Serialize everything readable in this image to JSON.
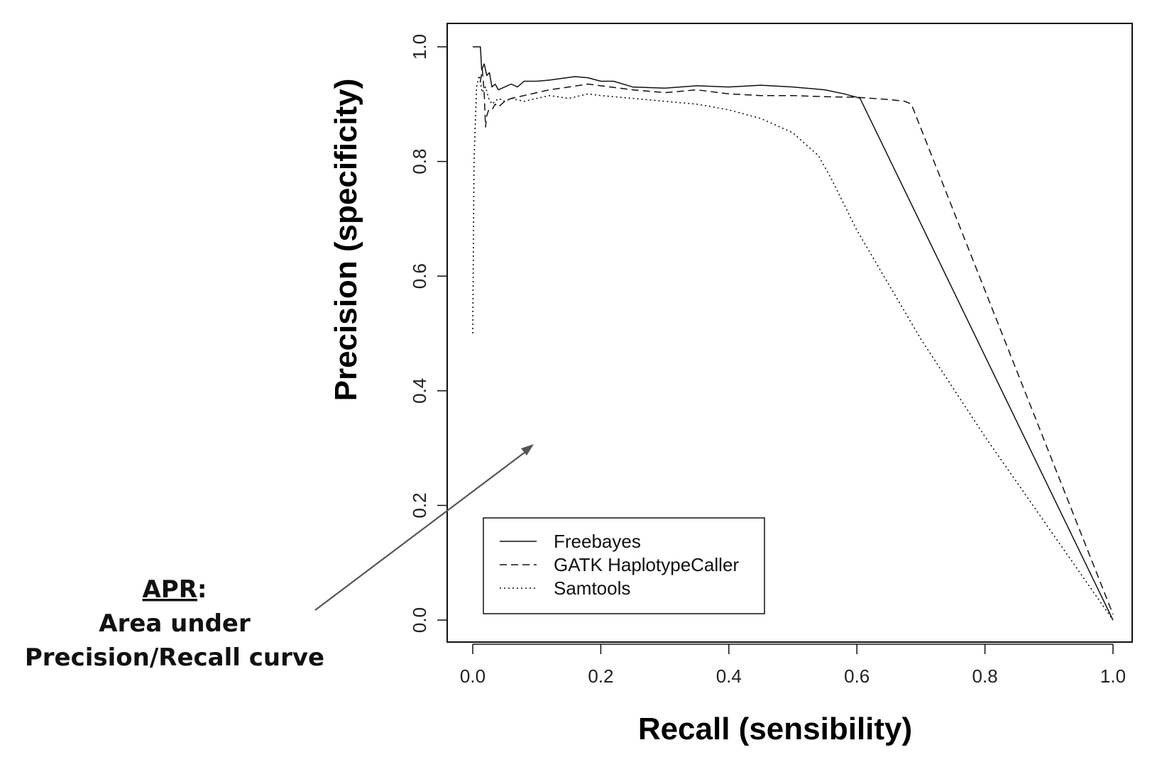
{
  "chart_data": {
    "type": "line",
    "xlabel": "Recall (sensibility)",
    "ylabel": "Precision (specificity)",
    "xlim": [
      0.0,
      1.0
    ],
    "ylim": [
      0.0,
      1.0
    ],
    "xticks": [
      "0.0",
      "0.2",
      "0.4",
      "0.6",
      "0.8",
      "1.0"
    ],
    "yticks": [
      "0.0",
      "0.2",
      "0.4",
      "0.6",
      "0.8",
      "1.0"
    ],
    "grid": false,
    "legend_position": "bottom-left",
    "series": [
      {
        "name": "Freebayes",
        "style": "solid",
        "x": [
          0.0,
          0.006,
          0.012,
          0.014,
          0.018,
          0.022,
          0.026,
          0.03,
          0.035,
          0.04,
          0.05,
          0.06,
          0.07,
          0.08,
          0.1,
          0.12,
          0.14,
          0.16,
          0.18,
          0.2,
          0.22,
          0.25,
          0.3,
          0.35,
          0.4,
          0.45,
          0.5,
          0.55,
          0.58,
          0.6,
          0.605,
          1.0
        ],
        "y": [
          1.0,
          1.0,
          1.0,
          0.96,
          0.97,
          0.95,
          0.955,
          0.93,
          0.935,
          0.925,
          0.93,
          0.935,
          0.93,
          0.94,
          0.94,
          0.942,
          0.945,
          0.948,
          0.946,
          0.94,
          0.94,
          0.93,
          0.928,
          0.932,
          0.93,
          0.933,
          0.93,
          0.925,
          0.918,
          0.912,
          0.91,
          0.0
        ]
      },
      {
        "name": "GATK HaplotypeCaller",
        "style": "dashed",
        "x": [
          0.012,
          0.015,
          0.018,
          0.02,
          0.022,
          0.025,
          0.03,
          0.035,
          0.04,
          0.05,
          0.06,
          0.08,
          0.1,
          0.12,
          0.15,
          0.18,
          0.2,
          0.25,
          0.3,
          0.35,
          0.4,
          0.45,
          0.5,
          0.55,
          0.6,
          0.65,
          0.675,
          0.685,
          1.0
        ],
        "y": [
          0.94,
          0.96,
          0.92,
          0.86,
          0.88,
          0.89,
          0.89,
          0.9,
          0.895,
          0.905,
          0.91,
          0.915,
          0.92,
          0.925,
          0.93,
          0.935,
          0.932,
          0.925,
          0.92,
          0.925,
          0.918,
          0.915,
          0.915,
          0.913,
          0.912,
          0.908,
          0.905,
          0.9,
          0.01
        ]
      },
      {
        "name": "Samtools",
        "style": "dotted",
        "x": [
          0.0,
          0.002,
          0.006,
          0.01,
          0.015,
          0.02,
          0.025,
          0.03,
          0.04,
          0.05,
          0.06,
          0.08,
          0.1,
          0.12,
          0.15,
          0.18,
          0.2,
          0.25,
          0.3,
          0.35,
          0.4,
          0.45,
          0.48,
          0.5,
          0.52,
          0.54,
          0.56,
          0.6,
          0.7,
          0.8,
          0.9,
          1.0
        ],
        "y": [
          0.5,
          0.8,
          0.93,
          0.95,
          0.92,
          0.93,
          0.91,
          0.9,
          0.91,
          0.905,
          0.91,
          0.905,
          0.91,
          0.915,
          0.91,
          0.918,
          0.915,
          0.91,
          0.905,
          0.9,
          0.89,
          0.875,
          0.86,
          0.85,
          0.83,
          0.81,
          0.77,
          0.68,
          0.49,
          0.32,
          0.16,
          0.0
        ]
      }
    ]
  },
  "annotation": {
    "term": "APR",
    "colon": ":",
    "line1": "Area under",
    "line2": "Precision/Recall curve"
  },
  "colors": {
    "line": "#111111",
    "arrow": "#555555",
    "frame": "#111111"
  }
}
